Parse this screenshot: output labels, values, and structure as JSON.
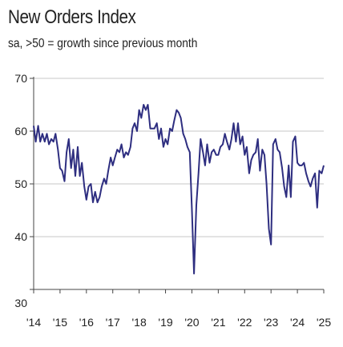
{
  "header": {
    "title": "New Orders Index",
    "subtitle": "sa, >50 = growth since previous month"
  },
  "colors": {
    "line": "#2e2e80",
    "grid": "#c7c7c7",
    "axis": "#444444"
  },
  "chart_data": {
    "type": "line",
    "title": "New Orders Index",
    "subtitle": "sa, >50 = growth since previous month",
    "xlabel": "",
    "ylabel": "",
    "ylim": [
      30,
      70
    ],
    "yticks": [
      30,
      40,
      50,
      60,
      70
    ],
    "xlim": [
      2014.0,
      2025.0
    ],
    "xticks": [
      2014,
      2015,
      2016,
      2017,
      2018,
      2019,
      2020,
      2021,
      2022,
      2023,
      2024,
      2025
    ],
    "xtick_labels": [
      "'14",
      "'15",
      "'16",
      "'17",
      "'18",
      "'19",
      "'20",
      "'21",
      "'22",
      "'23",
      "'24",
      "'25"
    ],
    "grid": "horizontal",
    "legend": "none",
    "series": [
      {
        "x": [
          2014.0,
          2014.08,
          2014.17,
          2014.25,
          2014.33,
          2014.42,
          2014.5,
          2014.58,
          2014.67,
          2014.75,
          2014.83,
          2014.92,
          2015.0,
          2015.08,
          2015.17,
          2015.25,
          2015.33,
          2015.42,
          2015.5,
          2015.58,
          2015.67,
          2015.75,
          2015.83,
          2015.92,
          2016.0,
          2016.08,
          2016.17,
          2016.25,
          2016.33,
          2016.42,
          2016.5,
          2016.58,
          2016.67,
          2016.75,
          2016.83,
          2016.92,
          2017.0,
          2017.08,
          2017.17,
          2017.25,
          2017.33,
          2017.42,
          2017.5,
          2017.58,
          2017.67,
          2017.75,
          2017.83,
          2017.92,
          2018.0,
          2018.08,
          2018.17,
          2018.25,
          2018.33,
          2018.42,
          2018.5,
          2018.58,
          2018.67,
          2018.75,
          2018.83,
          2018.92,
          2019.0,
          2019.08,
          2019.17,
          2019.25,
          2019.33,
          2019.42,
          2019.5,
          2019.58,
          2019.67,
          2019.75,
          2019.83,
          2019.92,
          2020.0,
          2020.08,
          2020.17,
          2020.25,
          2020.33,
          2020.42,
          2020.5,
          2020.58,
          2020.67,
          2020.75,
          2020.83,
          2020.92,
          2021.0,
          2021.08,
          2021.17,
          2021.25,
          2021.33,
          2021.42,
          2021.5,
          2021.58,
          2021.67,
          2021.75,
          2021.83,
          2021.92,
          2022.0,
          2022.08,
          2022.17,
          2022.25,
          2022.33,
          2022.42,
          2022.5,
          2022.58,
          2022.67,
          2022.75,
          2022.83,
          2022.92,
          2023.0,
          2023.08,
          2023.17,
          2023.25,
          2023.33,
          2023.42,
          2023.5,
          2023.58,
          2023.67,
          2023.75,
          2023.83,
          2023.92,
          2024.0,
          2024.08,
          2024.17,
          2024.25,
          2024.33,
          2024.42,
          2024.5,
          2024.58,
          2024.67,
          2024.75,
          2024.83,
          2024.92,
          2025.0
        ],
        "values": [
          61.0,
          58.0,
          61.0,
          58.0,
          59.5,
          58.0,
          59.5,
          57.5,
          58.5,
          58.0,
          59.5,
          56.5,
          53.0,
          52.5,
          50.5,
          56.0,
          58.5,
          53.0,
          56.5,
          51.5,
          57.0,
          51.5,
          54.0,
          49.5,
          47.0,
          49.5,
          50.0,
          46.5,
          48.5,
          46.5,
          47.5,
          49.5,
          51.0,
          50.0,
          52.5,
          55.0,
          53.5,
          55.0,
          56.5,
          56.0,
          57.5,
          55.0,
          56.0,
          55.5,
          57.0,
          60.5,
          61.5,
          60.0,
          64.0,
          62.5,
          65.0,
          64.0,
          65.0,
          60.5,
          60.5,
          60.5,
          61.5,
          58.5,
          60.5,
          57.0,
          58.5,
          57.5,
          60.5,
          60.0,
          62.0,
          64.0,
          63.5,
          62.5,
          59.5,
          58.5,
          57.0,
          56.0,
          45.0,
          33.0,
          46.0,
          52.0,
          58.5,
          56.0,
          53.5,
          57.5,
          54.0,
          56.0,
          56.5,
          55.5,
          55.5,
          57.0,
          57.5,
          59.5,
          58.0,
          56.5,
          58.5,
          61.5,
          58.0,
          61.5,
          57.5,
          59.0,
          55.5,
          57.0,
          52.0,
          54.5,
          55.5,
          56.0,
          58.5,
          52.5,
          56.5,
          55.5,
          50.0,
          41.5,
          38.5,
          57.5,
          58.5,
          56.5,
          56.0,
          53.0,
          49.5,
          47.5,
          53.5,
          47.5,
          58.0,
          59.0,
          54.0,
          53.5,
          53.5,
          54.0,
          52.0,
          50.5,
          49.5,
          51.0,
          52.0,
          45.5,
          52.5,
          52.0,
          53.5
        ]
      }
    ]
  }
}
